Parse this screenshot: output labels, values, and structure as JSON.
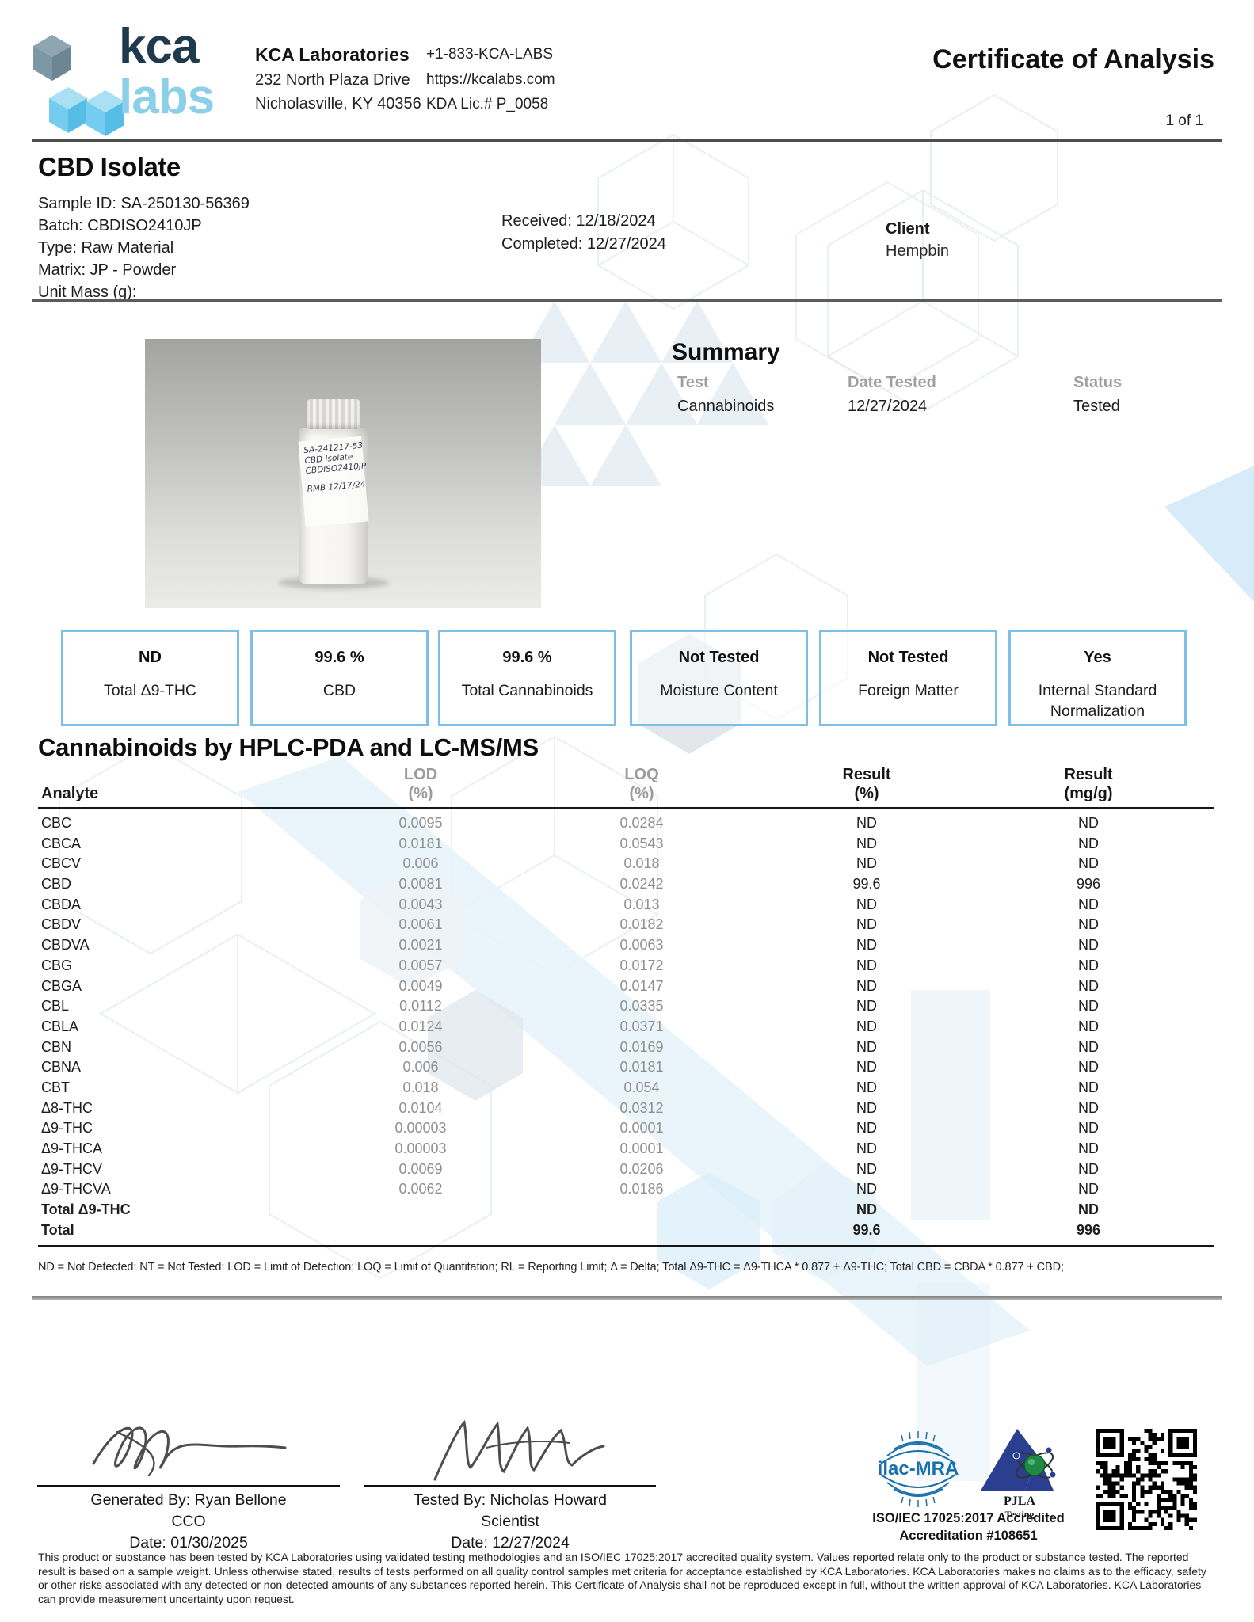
{
  "header": {
    "logo_kca": "kca",
    "logo_labs": "labs",
    "lab_name": "KCA Laboratories",
    "address1": "232 North Plaza Drive",
    "address2": "Nicholasville, KY 40356",
    "phone": "+1-833-KCA-LABS",
    "website": "https://kcalabs.com",
    "license": "KDA Lic.# P_0058",
    "doc_title": "Certificate of Analysis",
    "page_number": "1 of 1"
  },
  "sample": {
    "title": "CBD Isolate",
    "details": [
      "Sample ID: SA-250130-56369",
      "Batch: CBDISO2410JP",
      "Type: Raw Material",
      "Matrix: JP - Powder",
      "Unit Mass (g):"
    ],
    "received": "Received: 12/18/2024",
    "completed": "Completed: 12/27/2024",
    "client_label": "Client",
    "client_name": "Hempbin"
  },
  "photo": {
    "label_lines": [
      "SA-241217-53",
      "CBD Isolate",
      "CBDISO2410JP",
      "RMB  12/17/24"
    ]
  },
  "summary": {
    "title": "Summary",
    "columns": [
      {
        "label": "Test",
        "value": "Cannabinoids"
      },
      {
        "label": "Date Tested",
        "value": "12/27/2024"
      },
      {
        "label": "Status",
        "value": "Tested"
      }
    ]
  },
  "result_boxes": [
    {
      "value": "ND",
      "label": "Total Δ9-THC"
    },
    {
      "value": "99.6 %",
      "label": "CBD"
    },
    {
      "value": "99.6 %",
      "label": "Total Cannabinoids"
    },
    {
      "value": "Not Tested",
      "label": "Moisture Content"
    },
    {
      "value": "Not Tested",
      "label": "Foreign Matter"
    },
    {
      "value": "Yes",
      "label": "Internal Standard Normalization"
    }
  ],
  "cannabinoids": {
    "title": "Cannabinoids by HPLC-PDA and LC-MS/MS",
    "headers": {
      "analyte": "Analyte",
      "lod_1": "LOD",
      "lod_2": "(%)",
      "loq_1": "LOQ",
      "loq_2": "(%)",
      "result_pct_1": "Result",
      "result_pct_2": "(%)",
      "result_mgg_1": "Result",
      "result_mgg_2": "(mg/g)"
    },
    "rows": [
      {
        "analyte": "CBC",
        "lod": "0.0095",
        "loq": "0.0284",
        "result_pct": "ND",
        "result_mgg": "ND",
        "bold": false
      },
      {
        "analyte": "CBCA",
        "lod": "0.0181",
        "loq": "0.0543",
        "result_pct": "ND",
        "result_mgg": "ND",
        "bold": false
      },
      {
        "analyte": "CBCV",
        "lod": "0.006",
        "loq": "0.018",
        "result_pct": "ND",
        "result_mgg": "ND",
        "bold": false
      },
      {
        "analyte": "CBD",
        "lod": "0.0081",
        "loq": "0.0242",
        "result_pct": "99.6",
        "result_mgg": "996",
        "bold": false
      },
      {
        "analyte": "CBDA",
        "lod": "0.0043",
        "loq": "0.013",
        "result_pct": "ND",
        "result_mgg": "ND",
        "bold": false
      },
      {
        "analyte": "CBDV",
        "lod": "0.0061",
        "loq": "0.0182",
        "result_pct": "ND",
        "result_mgg": "ND",
        "bold": false
      },
      {
        "analyte": "CBDVA",
        "lod": "0.0021",
        "loq": "0.0063",
        "result_pct": "ND",
        "result_mgg": "ND",
        "bold": false
      },
      {
        "analyte": "CBG",
        "lod": "0.0057",
        "loq": "0.0172",
        "result_pct": "ND",
        "result_mgg": "ND",
        "bold": false
      },
      {
        "analyte": "CBGA",
        "lod": "0.0049",
        "loq": "0.0147",
        "result_pct": "ND",
        "result_mgg": "ND",
        "bold": false
      },
      {
        "analyte": "CBL",
        "lod": "0.0112",
        "loq": "0.0335",
        "result_pct": "ND",
        "result_mgg": "ND",
        "bold": false
      },
      {
        "analyte": "CBLA",
        "lod": "0.0124",
        "loq": "0.0371",
        "result_pct": "ND",
        "result_mgg": "ND",
        "bold": false
      },
      {
        "analyte": "CBN",
        "lod": "0.0056",
        "loq": "0.0169",
        "result_pct": "ND",
        "result_mgg": "ND",
        "bold": false
      },
      {
        "analyte": "CBNA",
        "lod": "0.006",
        "loq": "0.0181",
        "result_pct": "ND",
        "result_mgg": "ND",
        "bold": false
      },
      {
        "analyte": "CBT",
        "lod": "0.018",
        "loq": "0.054",
        "result_pct": "ND",
        "result_mgg": "ND",
        "bold": false
      },
      {
        "analyte": "Δ8-THC",
        "lod": "0.0104",
        "loq": "0.0312",
        "result_pct": "ND",
        "result_mgg": "ND",
        "bold": false
      },
      {
        "analyte": "Δ9-THC",
        "lod": "0.00003",
        "loq": "0.0001",
        "result_pct": "ND",
        "result_mgg": "ND",
        "bold": false
      },
      {
        "analyte": "Δ9-THCA",
        "lod": "0.00003",
        "loq": "0.0001",
        "result_pct": "ND",
        "result_mgg": "ND",
        "bold": false
      },
      {
        "analyte": "Δ9-THCV",
        "lod": "0.0069",
        "loq": "0.0206",
        "result_pct": "ND",
        "result_mgg": "ND",
        "bold": false
      },
      {
        "analyte": "Δ9-THCVA",
        "lod": "0.0062",
        "loq": "0.0186",
        "result_pct": "ND",
        "result_mgg": "ND",
        "bold": false
      },
      {
        "analyte": "Total Δ9-THC",
        "lod": "",
        "loq": "",
        "result_pct": "ND",
        "result_mgg": "ND",
        "bold": true
      },
      {
        "analyte": "Total",
        "lod": "",
        "loq": "",
        "result_pct": "99.6",
        "result_mgg": "996",
        "bold": true
      }
    ],
    "footnote": "ND = Not Detected; NT = Not Tested; LOD = Limit of Detection; LOQ = Limit of Quantitation; RL = Reporting Limit; Δ = Delta; Total Δ9-THC = Δ9-THCA * 0.877 + Δ9-THC; Total CBD = CBDA * 0.877 + CBD;"
  },
  "signatures": [
    {
      "name_line": "Generated By: Ryan Bellone",
      "role": "CCO",
      "date": "Date: 01/30/2025"
    },
    {
      "name_line": "Tested By: Nicholas Howard",
      "role": "Scientist",
      "date": "Date: 12/27/2024"
    }
  ],
  "accreditation": {
    "ilac_text": "ilac-MRA",
    "pjla_name": "PJLA",
    "pjla_sub": "Testing",
    "iso_line1": "ISO/IEC 17025:2017 Accredited",
    "iso_line2": "Accreditation #108651"
  },
  "disclaimer": "This product or substance has been tested by KCA Laboratories using validated testing methodologies and an ISO/IEC 17025:2017 accredited quality system. Values reported relate only to the product or substance tested. The reported result is based on a sample weight. Unless otherwise stated, results of tests performed on all quality control samples met criteria for acceptance established by KCA Laboratories. KCA Laboratories makes no claims as to the efficacy, safety or other risks associated with any detected or non-detected amounts of any substances reported herein. This Certificate of Analysis shall not be reproduced except in full, without the written approval of KCA Laboratories. KCA Laboratories can provide measurement uncertainty upon request.",
  "colors": {
    "brand_navy": "#1e3a4c",
    "brand_lightblue": "#8ccfe9",
    "box_border": "#7cc0e9",
    "muted_gray": "#9b9b9b",
    "ilac_blue": "#1a6fad",
    "pjla_blue": "#2b3f90",
    "pjla_green": "#1e8a44"
  }
}
